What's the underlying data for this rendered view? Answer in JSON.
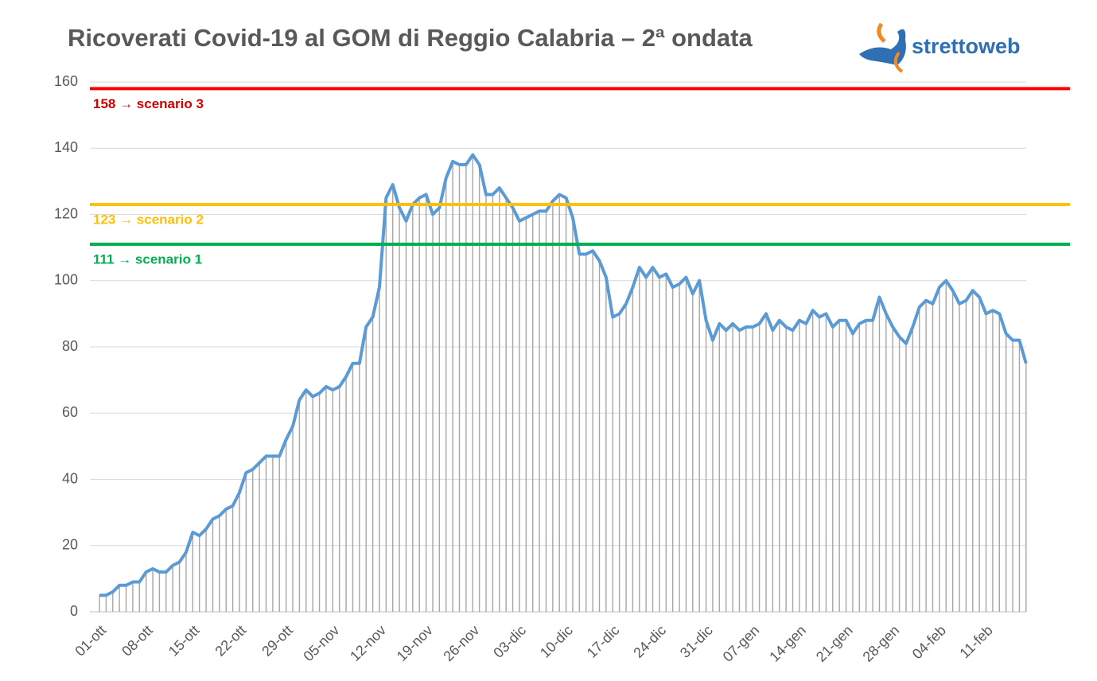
{
  "chart_data": {
    "type": "line",
    "title": "Ricoverati Covid-19 al GOM di Reggio Calabria – 2ª ondata",
    "logo": "strettoweb",
    "categories": [
      "01-ott",
      null,
      null,
      null,
      null,
      null,
      null,
      "08-ott",
      null,
      null,
      null,
      null,
      null,
      null,
      "15-ott",
      null,
      null,
      null,
      null,
      null,
      null,
      "22-ott",
      null,
      null,
      null,
      null,
      null,
      null,
      "29-ott",
      null,
      null,
      null,
      null,
      null,
      null,
      "05-nov",
      null,
      null,
      null,
      null,
      null,
      null,
      "12-nov",
      null,
      null,
      null,
      null,
      null,
      null,
      "19-nov",
      null,
      null,
      null,
      null,
      null,
      null,
      "26-nov",
      null,
      null,
      null,
      null,
      null,
      null,
      "03-dic",
      null,
      null,
      null,
      null,
      null,
      null,
      "10-dic",
      null,
      null,
      null,
      null,
      null,
      null,
      "17-dic",
      null,
      null,
      null,
      null,
      null,
      null,
      "24-dic",
      null,
      null,
      null,
      null,
      null,
      null,
      "31-dic",
      null,
      null,
      null,
      null,
      null,
      null,
      "07-gen",
      null,
      null,
      null,
      null,
      null,
      null,
      "14-gen",
      null,
      null,
      null,
      null,
      null,
      null,
      "21-gen",
      null,
      null,
      null,
      null,
      null,
      null,
      "28-gen",
      null,
      null,
      null,
      null,
      null,
      null,
      "04-feb",
      null,
      null,
      null,
      null,
      null,
      null,
      "11-feb",
      null,
      null,
      null,
      null,
      null,
      null
    ],
    "values": [
      5,
      5,
      6,
      8,
      8,
      9,
      9,
      12,
      13,
      12,
      12,
      14,
      15,
      18,
      24,
      23,
      25,
      28,
      29,
      31,
      32,
      36,
      42,
      43,
      45,
      47,
      47,
      47,
      52,
      56,
      64,
      67,
      65,
      66,
      68,
      67,
      68,
      71,
      75,
      75,
      86,
      89,
      98,
      125,
      129,
      122,
      118,
      123,
      125,
      126,
      120,
      122,
      131,
      136,
      135,
      135,
      138,
      135,
      126,
      126,
      128,
      125,
      122,
      118,
      119,
      120,
      121,
      121,
      124,
      126,
      125,
      119,
      108,
      108,
      109,
      106,
      101,
      89,
      90,
      93,
      98,
      104,
      101,
      104,
      101,
      102,
      98,
      99,
      101,
      96,
      100,
      88,
      82,
      87,
      85,
      87,
      85,
      86,
      86,
      87,
      90,
      85,
      88,
      86,
      85,
      88,
      87,
      91,
      89,
      90,
      86,
      88,
      88,
      84,
      87,
      88,
      88,
      95,
      90,
      86,
      83,
      81,
      86,
      92,
      94,
      93,
      98,
      100,
      97,
      93,
      94,
      97,
      95,
      90,
      91,
      90,
      84,
      82,
      82,
      75
    ],
    "color": "#5b9bd5",
    "bar_color": "#a6a6a6",
    "ylim": [
      0,
      160
    ],
    "yticks": [
      0,
      20,
      40,
      60,
      80,
      100,
      120,
      140,
      160
    ],
    "grid": true,
    "reference_lines": [
      {
        "value": 158,
        "label": "158 → scenario 3",
        "color": "#ff0000",
        "text_color": "#d00000"
      },
      {
        "value": 123,
        "label": "123 → scenario 2",
        "color": "#ffc000",
        "text_color": "#ffc000"
      },
      {
        "value": 111,
        "label": "111 → scenario 1",
        "color": "#00b050",
        "text_color": "#00b050"
      }
    ]
  }
}
